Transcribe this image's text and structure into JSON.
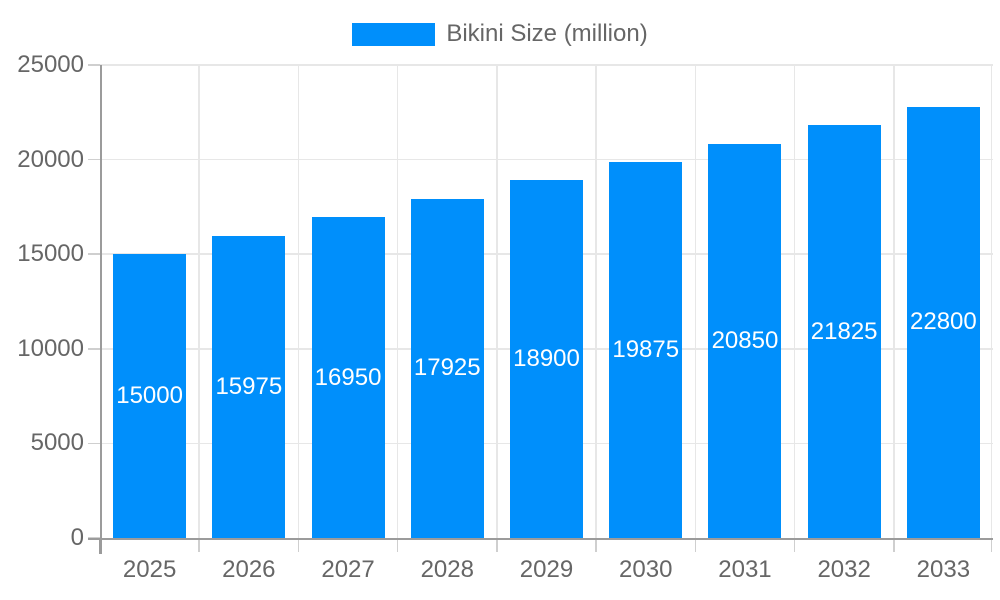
{
  "chart_data": {
    "type": "bar",
    "title": "",
    "legend": "Bikini Size (million)",
    "legend_position": "top",
    "categories": [
      "2025",
      "2026",
      "2027",
      "2028",
      "2029",
      "2030",
      "2031",
      "2032",
      "2033"
    ],
    "values": [
      15000,
      15975,
      16950,
      17925,
      18900,
      19875,
      20850,
      21825,
      22800
    ],
    "xlabel": "",
    "ylabel": "",
    "ylim": [
      0,
      25000
    ],
    "yticks": [
      0,
      5000,
      10000,
      15000,
      20000,
      25000
    ],
    "grid": true,
    "data_labels": "inside-bar-centered",
    "colors": {
      "bar": "#008FFB",
      "bar_value_label": "#ffffff",
      "axis_text": "#666666",
      "axis_line": "#9b9b9b",
      "gridline": "#e7e7e7",
      "tick": "#cfcfcf",
      "background": "#ffffff"
    }
  }
}
